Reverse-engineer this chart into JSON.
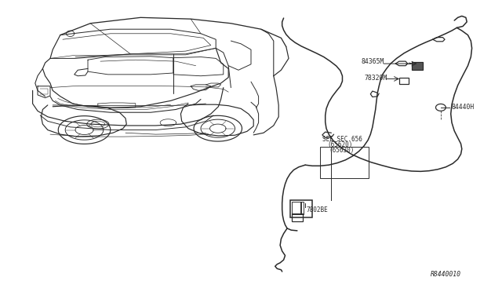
{
  "bg_color": "#ffffff",
  "line_color": "#2a2a2a",
  "label_color": "#2a2a2a",
  "font_size": 6.5,
  "font_size_small": 5.8,
  "diagram_ref": "R8440010",
  "labels": {
    "84365M": [
      0.622,
      0.825
    ],
    "78320M": [
      0.638,
      0.665
    ],
    "84440H": [
      0.755,
      0.555
    ],
    "SEE_SEC_line1": "SEE SEC.656",
    "SEE_SEC_line2": "(65620)",
    "part_65630": "(65630)",
    "part_7802BE": "7802BE"
  },
  "car_region": [
    0.01,
    0.06,
    0.62,
    0.97
  ],
  "cable_region": [
    0.6,
    0.06,
    0.99,
    0.97
  ]
}
